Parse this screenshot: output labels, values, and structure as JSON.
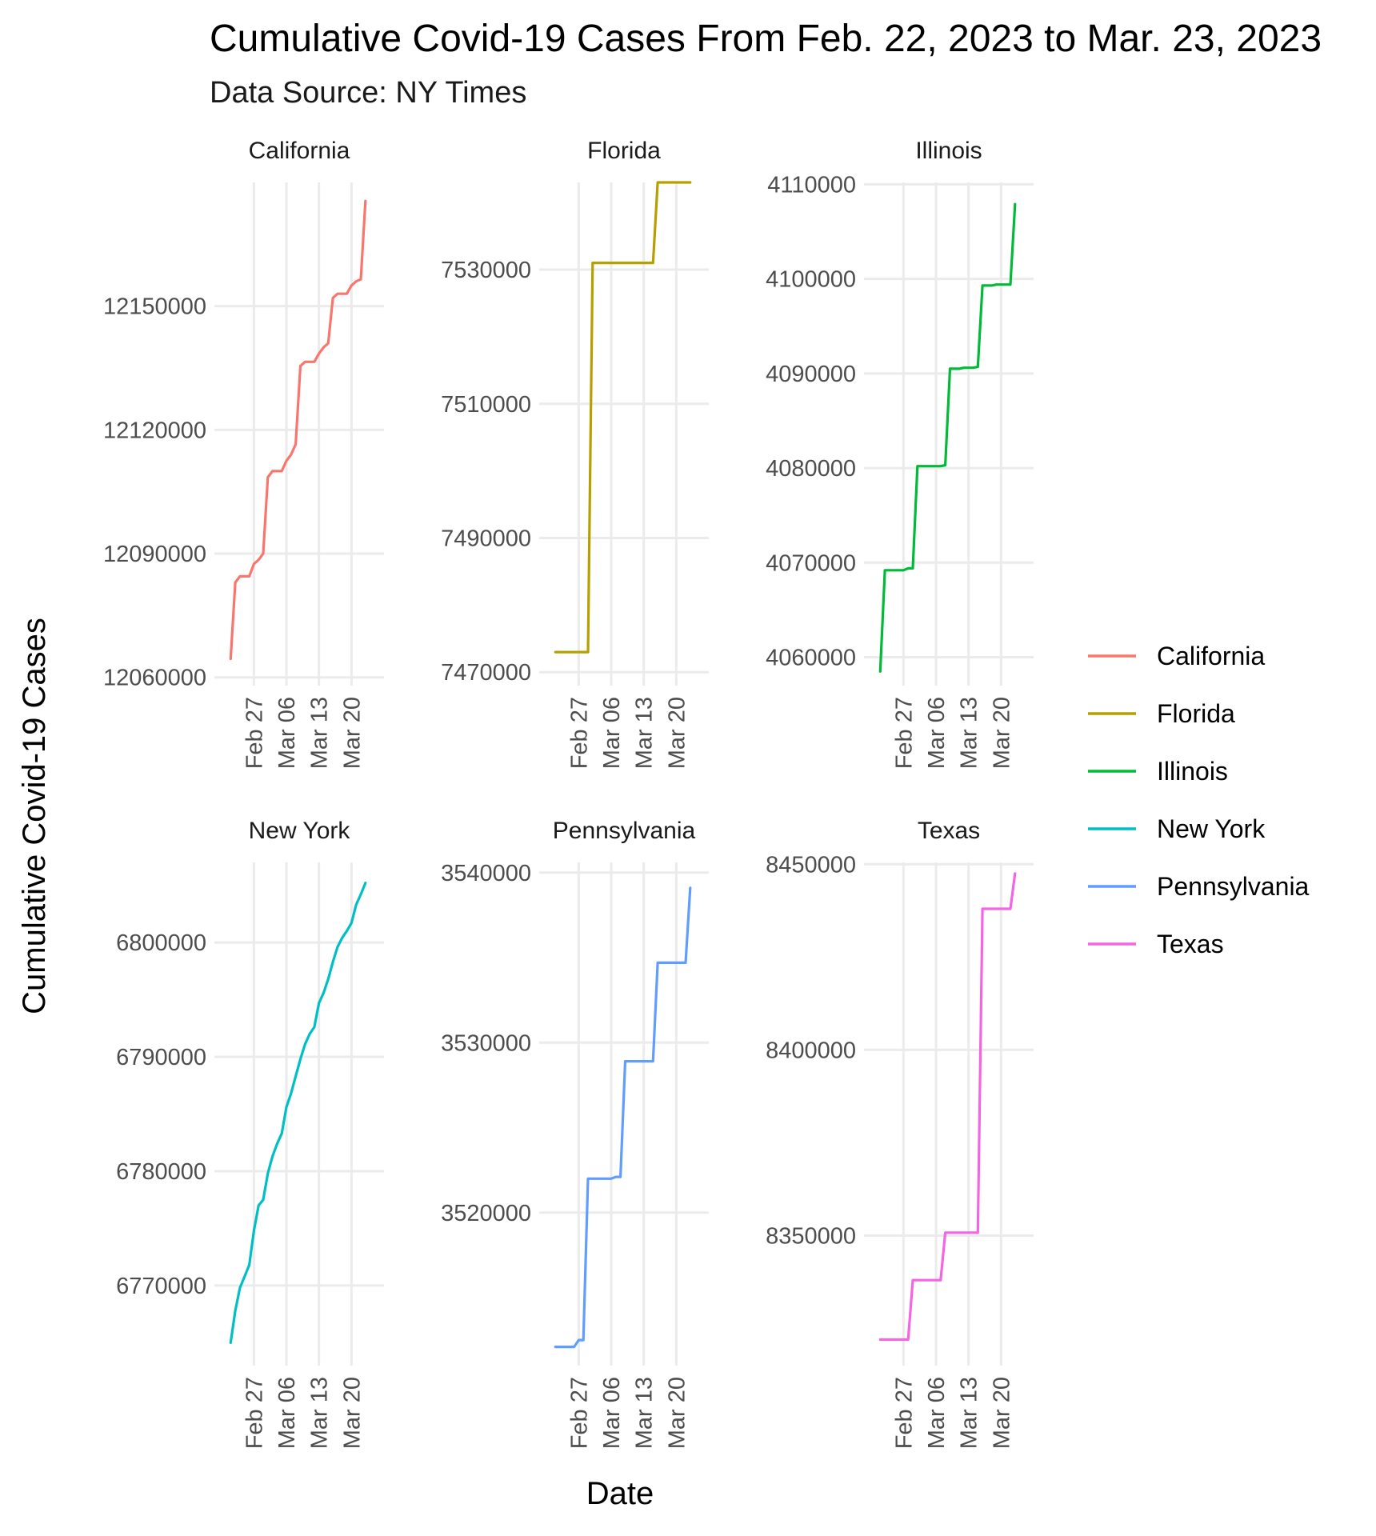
{
  "chart_data": {
    "type": "line",
    "title": "Cumulative Covid-19 Cases From Feb. 22, 2023 to Mar. 23, 2023",
    "subtitle": "Data Source: NY Times",
    "xlabel": "Date",
    "ylabel": "Cumulative Covid-19 Cases",
    "x_ticks": [
      "Feb 27",
      "Mar 06",
      "Mar 13",
      "Mar 20"
    ],
    "x_tick_days": [
      5,
      12,
      19,
      26
    ],
    "x_range_days": [
      -3.5,
      33
    ],
    "legend_position": "right",
    "grid": true,
    "panels": [
      {
        "name": "California",
        "color": "#F8766D",
        "ylim": [
          12058000,
          12180000
        ],
        "y_ticks": [
          12060000,
          12090000,
          12120000,
          12150000
        ],
        "points": [
          [
            0,
            12064500
          ],
          [
            1,
            12083000
          ],
          [
            2,
            12084500
          ],
          [
            3,
            12084500
          ],
          [
            4,
            12084500
          ],
          [
            5,
            12087500
          ],
          [
            6,
            12088500
          ],
          [
            7,
            12090000
          ],
          [
            8,
            12108500
          ],
          [
            9,
            12110000
          ],
          [
            10,
            12110000
          ],
          [
            11,
            12110000
          ],
          [
            12,
            12112500
          ],
          [
            13,
            12114000
          ],
          [
            14,
            12116500
          ],
          [
            15,
            12135500
          ],
          [
            16,
            12136500
          ],
          [
            17,
            12136500
          ],
          [
            18,
            12136500
          ],
          [
            19,
            12138500
          ],
          [
            20,
            12140000
          ],
          [
            21,
            12141000
          ],
          [
            22,
            12152000
          ],
          [
            23,
            12153000
          ],
          [
            24,
            12153000
          ],
          [
            25,
            12153000
          ],
          [
            26,
            12155000
          ],
          [
            27,
            12156000
          ],
          [
            28,
            12156500
          ],
          [
            29,
            12175500
          ]
        ]
      },
      {
        "name": "Florida",
        "color": "#B79F00",
        "ylim": [
          7468000,
          7543000
        ],
        "y_ticks": [
          7470000,
          7490000,
          7510000,
          7530000
        ],
        "points": [
          [
            0,
            7473000
          ],
          [
            1,
            7473000
          ],
          [
            2,
            7473000
          ],
          [
            3,
            7473000
          ],
          [
            4,
            7473000
          ],
          [
            5,
            7473000
          ],
          [
            6,
            7473000
          ],
          [
            7,
            7473000
          ],
          [
            8,
            7531000
          ],
          [
            9,
            7531000
          ],
          [
            10,
            7531000
          ],
          [
            11,
            7531000
          ],
          [
            12,
            7531000
          ],
          [
            13,
            7531000
          ],
          [
            14,
            7531000
          ],
          [
            15,
            7531000
          ],
          [
            16,
            7531000
          ],
          [
            17,
            7531000
          ],
          [
            18,
            7531000
          ],
          [
            19,
            7531000
          ],
          [
            20,
            7531000
          ],
          [
            21,
            7531000
          ],
          [
            22,
            7543000
          ],
          [
            23,
            7543000
          ],
          [
            24,
            7543000
          ],
          [
            25,
            7543000
          ],
          [
            26,
            7543000
          ],
          [
            27,
            7543000
          ],
          [
            28,
            7543000
          ],
          [
            29,
            7543000
          ]
        ]
      },
      {
        "name": "Illinois",
        "color": "#00BA38",
        "ylim": [
          4057000,
          4110200
        ],
        "y_ticks": [
          4060000,
          4070000,
          4080000,
          4090000,
          4100000,
          4110000
        ],
        "points": [
          [
            0,
            4058500
          ],
          [
            1,
            4069200
          ],
          [
            2,
            4069200
          ],
          [
            3,
            4069200
          ],
          [
            4,
            4069200
          ],
          [
            5,
            4069200
          ],
          [
            6,
            4069400
          ],
          [
            7,
            4069400
          ],
          [
            8,
            4080200
          ],
          [
            9,
            4080200
          ],
          [
            10,
            4080200
          ],
          [
            11,
            4080200
          ],
          [
            12,
            4080200
          ],
          [
            13,
            4080200
          ],
          [
            14,
            4080300
          ],
          [
            15,
            4090500
          ],
          [
            16,
            4090500
          ],
          [
            17,
            4090500
          ],
          [
            18,
            4090600
          ],
          [
            19,
            4090600
          ],
          [
            20,
            4090600
          ],
          [
            21,
            4090700
          ],
          [
            22,
            4099300
          ],
          [
            23,
            4099300
          ],
          [
            24,
            4099300
          ],
          [
            25,
            4099400
          ],
          [
            26,
            4099400
          ],
          [
            27,
            4099400
          ],
          [
            28,
            4099400
          ],
          [
            29,
            4107900
          ]
        ]
      },
      {
        "name": "New York",
        "color": "#00BFC4",
        "ylim": [
          6763000,
          6807000
        ],
        "y_ticks": [
          6770000,
          6780000,
          6790000,
          6800000
        ],
        "points": [
          [
            0,
            6765000
          ],
          [
            1,
            6767800
          ],
          [
            2,
            6769800
          ],
          [
            3,
            6770800
          ],
          [
            4,
            6771800
          ],
          [
            5,
            6774800
          ],
          [
            6,
            6777000
          ],
          [
            7,
            6777500
          ],
          [
            8,
            6779800
          ],
          [
            9,
            6781300
          ],
          [
            10,
            6782400
          ],
          [
            11,
            6783300
          ],
          [
            12,
            6785600
          ],
          [
            13,
            6786800
          ],
          [
            14,
            6788300
          ],
          [
            15,
            6789800
          ],
          [
            16,
            6791100
          ],
          [
            17,
            6792000
          ],
          [
            18,
            6792600
          ],
          [
            19,
            6794700
          ],
          [
            20,
            6795600
          ],
          [
            21,
            6796800
          ],
          [
            22,
            6798300
          ],
          [
            23,
            6799600
          ],
          [
            24,
            6800400
          ],
          [
            25,
            6801000
          ],
          [
            26,
            6801700
          ],
          [
            27,
            6803300
          ],
          [
            28,
            6804200
          ],
          [
            29,
            6805200
          ]
        ]
      },
      {
        "name": "Pennsylvania",
        "color": "#619CFF",
        "ylim": [
          3511000,
          3540600
        ],
        "y_ticks": [
          3520000,
          3530000,
          3540000
        ],
        "points": [
          [
            0,
            3512100
          ],
          [
            1,
            3512100
          ],
          [
            2,
            3512100
          ],
          [
            3,
            3512100
          ],
          [
            4,
            3512100
          ],
          [
            5,
            3512500
          ],
          [
            6,
            3512500
          ],
          [
            7,
            3522000
          ],
          [
            8,
            3522000
          ],
          [
            9,
            3522000
          ],
          [
            10,
            3522000
          ],
          [
            11,
            3522000
          ],
          [
            12,
            3522000
          ],
          [
            13,
            3522100
          ],
          [
            14,
            3522100
          ],
          [
            15,
            3528900
          ],
          [
            16,
            3528900
          ],
          [
            17,
            3528900
          ],
          [
            18,
            3528900
          ],
          [
            19,
            3528900
          ],
          [
            20,
            3528900
          ],
          [
            21,
            3528900
          ],
          [
            22,
            3534700
          ],
          [
            23,
            3534700
          ],
          [
            24,
            3534700
          ],
          [
            25,
            3534700
          ],
          [
            26,
            3534700
          ],
          [
            27,
            3534700
          ],
          [
            28,
            3534700
          ],
          [
            29,
            3539100
          ]
        ]
      },
      {
        "name": "Texas",
        "color": "#F564E3",
        "ylim": [
          8315000,
          8450500
        ],
        "y_ticks": [
          8350000,
          8400000,
          8450000
        ],
        "points": [
          [
            0,
            8322000
          ],
          [
            1,
            8322000
          ],
          [
            2,
            8322000
          ],
          [
            3,
            8322000
          ],
          [
            4,
            8322000
          ],
          [
            5,
            8322000
          ],
          [
            6,
            8322000
          ],
          [
            7,
            8338000
          ],
          [
            8,
            8338000
          ],
          [
            9,
            8338000
          ],
          [
            10,
            8338000
          ],
          [
            11,
            8338000
          ],
          [
            12,
            8338000
          ],
          [
            13,
            8338000
          ],
          [
            14,
            8350800
          ],
          [
            15,
            8350800
          ],
          [
            16,
            8350800
          ],
          [
            17,
            8350800
          ],
          [
            18,
            8350800
          ],
          [
            19,
            8350800
          ],
          [
            20,
            8350800
          ],
          [
            21,
            8350800
          ],
          [
            22,
            8438000
          ],
          [
            23,
            8438000
          ],
          [
            24,
            8438000
          ],
          [
            25,
            8438000
          ],
          [
            26,
            8438000
          ],
          [
            27,
            8438000
          ],
          [
            28,
            8438000
          ],
          [
            29,
            8447500
          ]
        ]
      }
    ]
  }
}
